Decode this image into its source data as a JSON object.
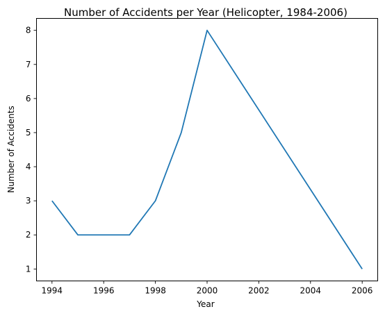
{
  "chart_data": {
    "type": "line",
    "title": "Number of Accidents per Year (Helicopter, 1984-2006)",
    "xlabel": "Year",
    "ylabel": "Number of Accidents",
    "x": [
      1994,
      1995,
      1996,
      1997,
      1998,
      1999,
      2000,
      2006
    ],
    "series": [
      {
        "values": [
          3,
          2,
          2,
          2,
          3,
          5,
          8,
          1
        ],
        "color": "#1f77b4"
      }
    ],
    "xlim": [
      1993.4,
      2006.6
    ],
    "ylim": [
      0.65,
      8.35
    ],
    "xticks": [
      1994,
      1996,
      1998,
      2000,
      2002,
      2004,
      2006
    ],
    "yticks": [
      1,
      2,
      3,
      4,
      5,
      6,
      7,
      8
    ],
    "grid": false,
    "legend": "none"
  }
}
